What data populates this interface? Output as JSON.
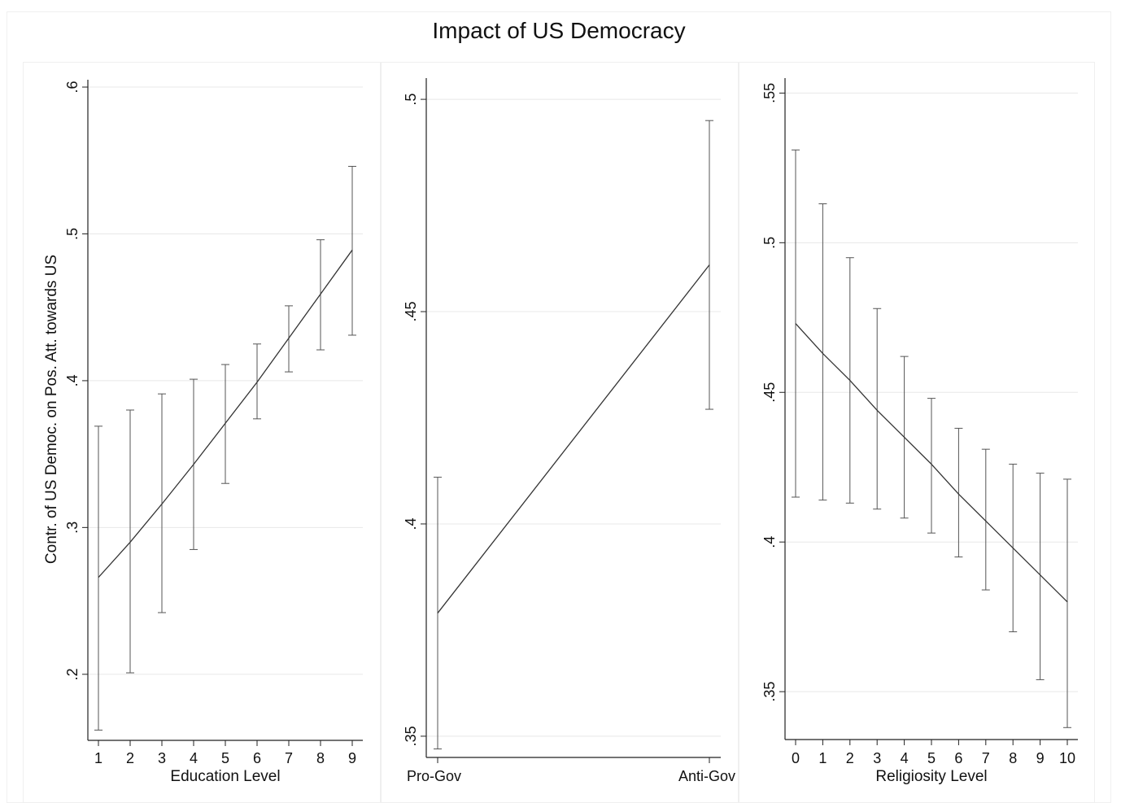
{
  "title": "Impact of US Democracy",
  "chart_data": [
    {
      "type": "line",
      "xlabel": "Education Level",
      "ylabel": "Contr. of US Democ. on Pos. Att. towards US",
      "ylim": [
        0.155,
        0.605
      ],
      "yticks": [
        {
          "value": 0.2,
          "label": ".2"
        },
        {
          "value": 0.3,
          "label": ".3"
        },
        {
          "value": 0.4,
          "label": ".4"
        },
        {
          "value": 0.5,
          "label": ".5"
        },
        {
          "value": 0.6,
          "label": ".6"
        }
      ],
      "x": [
        1,
        2,
        3,
        4,
        5,
        6,
        7,
        8,
        9
      ],
      "xtick_labels": [
        "1",
        "2",
        "3",
        "4",
        "5",
        "6",
        "7",
        "8",
        "9"
      ],
      "values": [
        0.266,
        0.29,
        0.316,
        0.343,
        0.371,
        0.399,
        0.429,
        0.459,
        0.489
      ],
      "ci_low": [
        0.162,
        0.201,
        0.242,
        0.285,
        0.33,
        0.374,
        0.406,
        0.421,
        0.431
      ],
      "ci_high": [
        0.369,
        0.38,
        0.391,
        0.401,
        0.411,
        0.425,
        0.451,
        0.496,
        0.546
      ],
      "grid": true
    },
    {
      "type": "line",
      "xlabel": "",
      "ylabel": "",
      "ylim": [
        0.345,
        0.505
      ],
      "yticks": [
        {
          "value": 0.35,
          "label": ".35"
        },
        {
          "value": 0.4,
          "label": ".4"
        },
        {
          "value": 0.45,
          "label": ".45"
        },
        {
          "value": 0.5,
          "label": ".5"
        }
      ],
      "x": [
        0,
        1
      ],
      "xtick_labels": [
        "Pro-Gov",
        "Anti-Gov"
      ],
      "values": [
        0.379,
        0.461
      ],
      "ci_low": [
        0.347,
        0.427
      ],
      "ci_high": [
        0.411,
        0.495
      ],
      "grid": true
    },
    {
      "type": "line",
      "xlabel": "Religiosity Level",
      "ylabel": "",
      "ylim": [
        0.334,
        0.555
      ],
      "yticks": [
        {
          "value": 0.35,
          "label": ".35"
        },
        {
          "value": 0.4,
          "label": ".4"
        },
        {
          "value": 0.45,
          "label": ".45"
        },
        {
          "value": 0.5,
          "label": ".5"
        },
        {
          "value": 0.55,
          "label": ".55"
        }
      ],
      "x": [
        0,
        1,
        2,
        3,
        4,
        5,
        6,
        7,
        8,
        9,
        10
      ],
      "xtick_labels": [
        "0",
        "1",
        "2",
        "3",
        "4",
        "5",
        "6",
        "7",
        "8",
        "9",
        "10"
      ],
      "values": [
        0.473,
        0.463,
        0.454,
        0.444,
        0.435,
        0.426,
        0.416,
        0.407,
        0.398,
        0.389,
        0.38
      ],
      "ci_low": [
        0.415,
        0.414,
        0.413,
        0.411,
        0.408,
        0.403,
        0.395,
        0.384,
        0.37,
        0.354,
        0.338
      ],
      "ci_high": [
        0.531,
        0.513,
        0.495,
        0.478,
        0.462,
        0.448,
        0.438,
        0.431,
        0.426,
        0.423,
        0.421
      ],
      "grid": true
    }
  ]
}
